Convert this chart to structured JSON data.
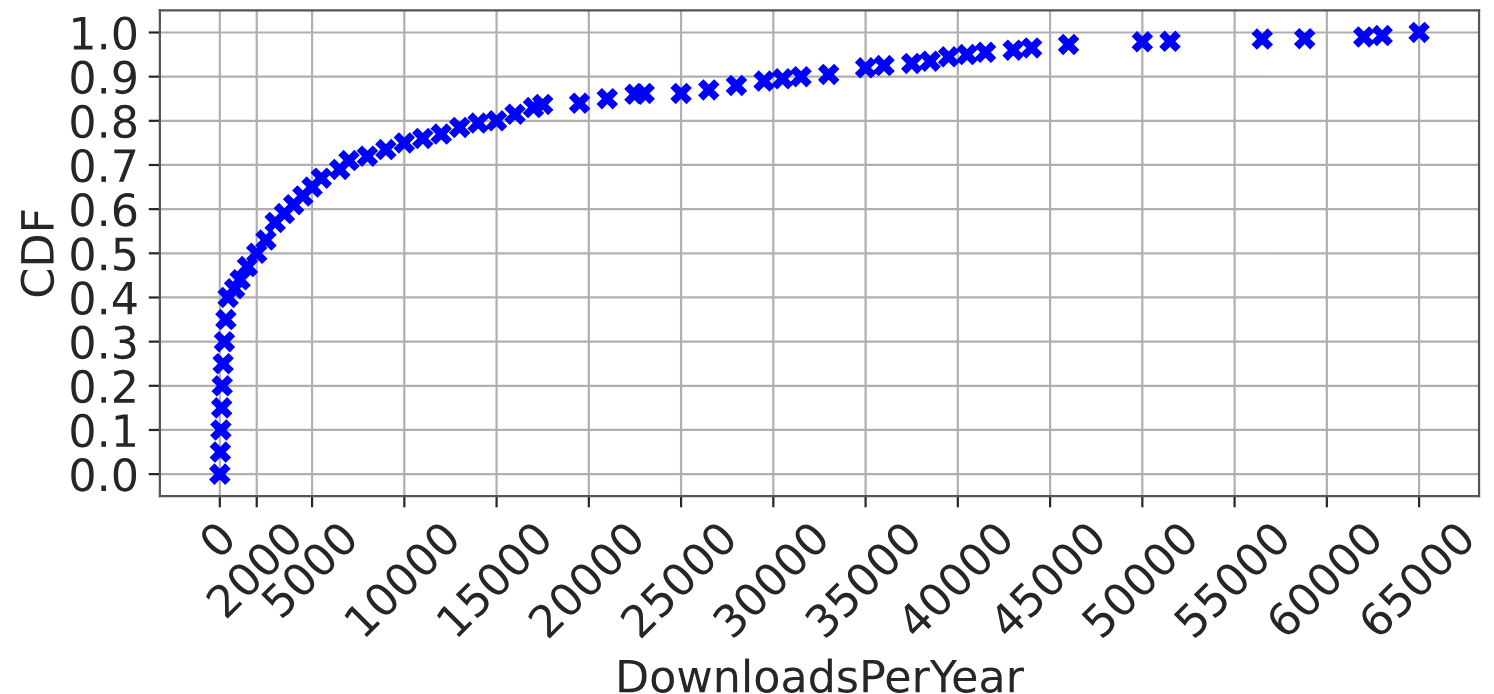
{
  "chart_data": {
    "type": "scatter",
    "xlabel": "DownloadsPerYear",
    "ylabel": "CDF",
    "x": [
      0,
      30,
      60,
      100,
      130,
      180,
      250,
      330,
      450,
      800,
      1100,
      1500,
      2000,
      2500,
      3000,
      3500,
      4000,
      4500,
      5000,
      5500,
      6500,
      7000,
      8000,
      9000,
      10000,
      11000,
      12000,
      13000,
      14000,
      15000,
      16000,
      17000,
      17500,
      19500,
      21000,
      22500,
      23000,
      25000,
      26500,
      28000,
      29500,
      30500,
      31500,
      33000,
      35000,
      36000,
      37500,
      38500,
      39500,
      40500,
      41500,
      43000,
      44000,
      46000,
      50000,
      51500,
      56500,
      58800,
      62000,
      63000,
      65000
    ],
    "series": [
      {
        "color": "#0000ff",
        "values": [
          0,
          0.05,
          0.1,
          0.15,
          0.2,
          0.25,
          0.3,
          0.35,
          0.4,
          0.42,
          0.44,
          0.47,
          0.5,
          0.53,
          0.57,
          0.59,
          0.61,
          0.63,
          0.65,
          0.67,
          0.69,
          0.71,
          0.72,
          0.735,
          0.75,
          0.76,
          0.77,
          0.785,
          0.795,
          0.8,
          0.815,
          0.83,
          0.837,
          0.84,
          0.85,
          0.86,
          0.862,
          0.862,
          0.87,
          0.88,
          0.89,
          0.895,
          0.9,
          0.905,
          0.92,
          0.925,
          0.93,
          0.935,
          0.945,
          0.95,
          0.955,
          0.96,
          0.965,
          0.973,
          0.979,
          0.98,
          0.985,
          0.986,
          0.99,
          0.993,
          1.0
        ]
      }
    ],
    "marker": "cross",
    "grid": true,
    "xlim": [
      -3250,
      68250
    ],
    "xticks": [
      0,
      2000,
      5000,
      10000,
      15000,
      20000,
      25000,
      30000,
      35000,
      40000,
      45000,
      50000,
      55000,
      60000,
      65000
    ],
    "ylim": [
      -0.05,
      1.05
    ],
    "yticks": [
      {
        "value": 0,
        "label": "0.0"
      },
      {
        "value": 0.1,
        "label": "0.1"
      },
      {
        "value": 0.2,
        "label": "0.2"
      },
      {
        "value": 0.3,
        "label": "0.3"
      },
      {
        "value": 0.4,
        "label": "0.4"
      },
      {
        "value": 0.5,
        "label": "0.5"
      },
      {
        "value": 0.6,
        "label": "0.6"
      },
      {
        "value": 0.7,
        "label": "0.7"
      },
      {
        "value": 0.8,
        "label": "0.8"
      },
      {
        "value": 0.9,
        "label": "0.9"
      },
      {
        "value": 1,
        "label": "1.0"
      }
    ]
  }
}
